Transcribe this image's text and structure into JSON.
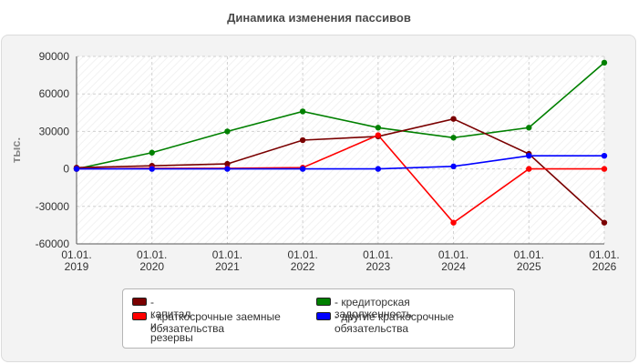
{
  "chart_data": {
    "type": "line",
    "title": "Динамика изменения пассивов",
    "ylabel": "тыс.",
    "xlabel": "",
    "categories": [
      "01.01.\n2019",
      "01.01.\n2020",
      "01.01.\n2021",
      "01.01.\n2022",
      "01.01.\n2023",
      "01.01.\n2024",
      "01.01.\n2025",
      "01.01.\n2026"
    ],
    "ylim": [
      -60000,
      90000
    ],
    "yticks": [
      90000,
      60000,
      30000,
      0,
      -30000,
      -60000
    ],
    "grid": true,
    "legend_position": "bottom",
    "series": [
      {
        "name": "- капитал и резервы",
        "color": "#7a0000",
        "values": [
          1000,
          2500,
          4000,
          23000,
          26000,
          40000,
          12000,
          -43000
        ]
      },
      {
        "name": "- кредиторская задолженность",
        "color": "#008000",
        "values": [
          0,
          13000,
          30000,
          46000,
          33000,
          25000,
          33000,
          85000
        ]
      },
      {
        "name": "- краткосрочные заемные обязательства",
        "color": "#ff0000",
        "values": [
          0,
          500,
          500,
          1000,
          27000,
          -43000,
          0,
          0
        ]
      },
      {
        "name": "- другие краткосрочные обязательства",
        "color": "#0000ff",
        "values": [
          0,
          0,
          0,
          0,
          0,
          2000,
          10500,
          10500
        ]
      }
    ]
  }
}
